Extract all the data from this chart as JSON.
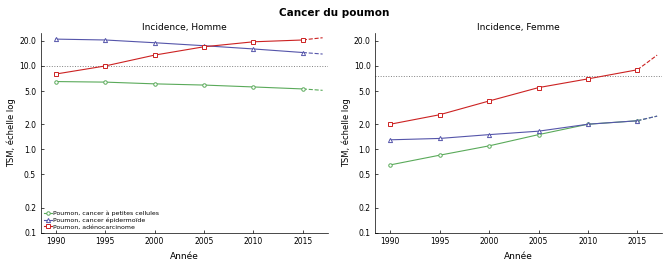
{
  "super_title": "Cancer du poumon",
  "left_title": "Incidence, Homme",
  "right_title": "Incidence, Femme",
  "xlabel": "Année",
  "ylabel": "TSM, échelle log",
  "years_obs": [
    1990,
    1995,
    2000,
    2005,
    2010,
    2015
  ],
  "years_proj": [
    2015,
    2016,
    2017
  ],
  "homme": {
    "petites_cellules_obs": [
      6.5,
      6.4,
      6.1,
      5.9,
      5.6,
      5.3
    ],
    "petites_cellules_proj": [
      5.3,
      5.2,
      5.1
    ],
    "epidermoide_obs": [
      21.0,
      20.5,
      19.0,
      17.5,
      16.0,
      14.5
    ],
    "epidermoide_proj": [
      14.5,
      14.2,
      13.9
    ],
    "adenocarcinome_obs": [
      8.0,
      10.0,
      13.5,
      17.0,
      19.5,
      20.5
    ],
    "adenocarcinome_proj": [
      20.5,
      21.2,
      21.8
    ],
    "hline": 10.0
  },
  "femme": {
    "petites_cellules_obs": [
      0.65,
      0.85,
      1.1,
      1.5,
      2.0,
      2.2
    ],
    "petites_cellules_proj": [
      2.2,
      2.35,
      2.5
    ],
    "epidermoide_obs": [
      1.3,
      1.35,
      1.5,
      1.65,
      2.0,
      2.2
    ],
    "epidermoide_proj": [
      2.2,
      2.35,
      2.5
    ],
    "adenocarcinome_obs": [
      2.0,
      2.6,
      3.8,
      5.5,
      7.0,
      9.0
    ],
    "adenocarcinome_proj": [
      9.0,
      11.0,
      13.5
    ],
    "hline": 7.5
  },
  "colors": {
    "petites_cellules": "#5aaa5a",
    "epidermoide": "#5555aa",
    "adenocarcinome": "#cc2222"
  },
  "ylim_log": [
    0.1,
    25.0
  ],
  "yticks": [
    0.1,
    0.2,
    0.5,
    1.0,
    2.0,
    5.0,
    10.0,
    20.0
  ],
  "ytick_labels": [
    "0.1",
    "0.2",
    "0.5",
    "1.0",
    "2.0",
    "5.0",
    "10.0",
    "20.0"
  ],
  "xticks": [
    1990,
    1995,
    2000,
    2005,
    2010,
    2015
  ],
  "legend_labels": [
    "Poumon, cancer à petites cellules",
    "Poumon, cancer épidermoïde",
    "Poumon, adénocarcinome"
  ]
}
